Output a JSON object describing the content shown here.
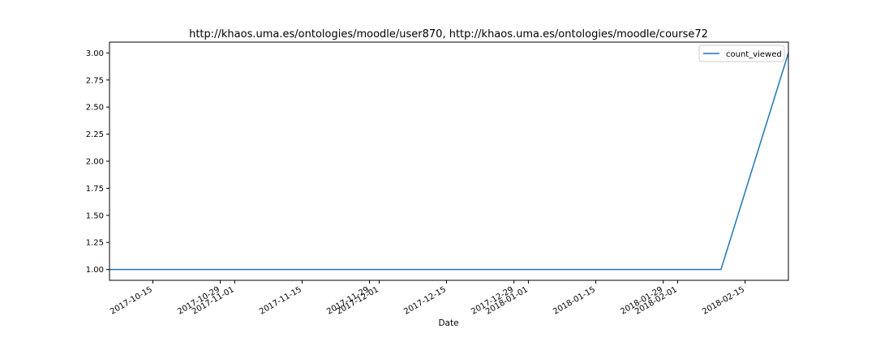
{
  "chart_data": {
    "type": "line",
    "title": "http://khaos.uma.es/ontologies/moodle/user870, http://khaos.uma.es/ontologies/moodle/course72",
    "xlabel": "Date",
    "ylabel": "",
    "x_type": "date",
    "xlim": [
      "2017-10-06",
      "2018-02-24"
    ],
    "ylim": [
      0.9,
      3.1
    ],
    "x_ticks": [
      "2017-10-15",
      "2017-10-29",
      "2017-11-01",
      "2017-11-15",
      "2017-11-29",
      "2017-12-01",
      "2017-12-15",
      "2017-12-29",
      "2018-01-01",
      "2018-01-15",
      "2018-01-29",
      "2018-02-01",
      "2018-02-15"
    ],
    "y_ticks": [
      1.0,
      1.25,
      1.5,
      1.75,
      2.0,
      2.25,
      2.5,
      2.75,
      3.0
    ],
    "y_tick_labels": [
      "1.00",
      "1.25",
      "1.50",
      "1.75",
      "2.00",
      "2.25",
      "2.50",
      "2.75",
      "3.00"
    ],
    "grid": false,
    "legend_position": "upper right",
    "series": [
      {
        "name": "count_viewed",
        "color": "#1f77b4",
        "x": [
          "2017-10-06",
          "2018-02-10",
          "2018-02-24"
        ],
        "y": [
          1,
          1,
          3
        ]
      }
    ]
  }
}
